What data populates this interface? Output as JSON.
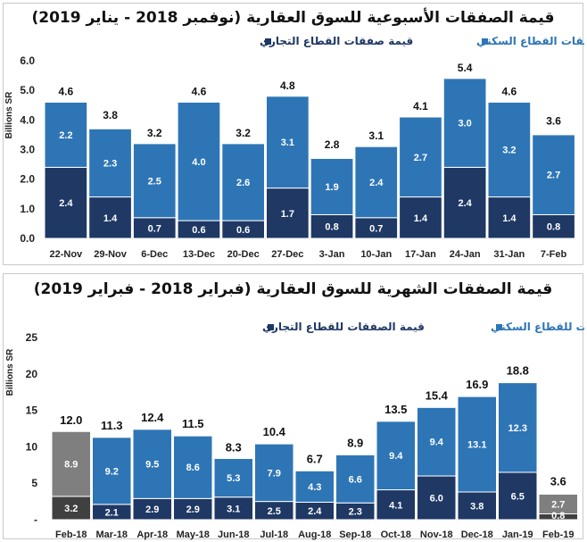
{
  "chart_data": [
    {
      "type": "bar",
      "stacked": true,
      "title": "قيمة الصفقات الأسبوعية للسوق العقارية (نوفمبر 2018 - يناير 2019)",
      "ylabel": "Billions SR",
      "ylim": [
        0,
        6
      ],
      "yticks": [
        "0.0",
        "1.0",
        "2.0",
        "3.0",
        "4.0",
        "5.0",
        "6.0"
      ],
      "categories": [
        "22-Nov",
        "29-Nov",
        "6-Dec",
        "13-Dec",
        "20-Dec",
        "27-Dec",
        "3-Jan",
        "10-Jan",
        "17-Jan",
        "24-Jan",
        "31-Jan",
        "7-Feb"
      ],
      "series": [
        {
          "name": "قيمة صفقات القطاع التجاري",
          "color": "#1f3864",
          "values": [
            2.4,
            1.4,
            0.7,
            0.6,
            0.6,
            1.7,
            0.8,
            0.7,
            1.4,
            2.4,
            1.4,
            0.8
          ]
        },
        {
          "name": "قيمة صفقات القطاع السكني",
          "color": "#2e75b6",
          "values": [
            2.2,
            2.3,
            2.5,
            4.0,
            2.6,
            3.1,
            1.9,
            2.4,
            2.7,
            3.0,
            3.2,
            2.7
          ]
        }
      ],
      "totals": [
        4.6,
        3.8,
        3.2,
        4.6,
        3.2,
        4.8,
        2.8,
        3.1,
        4.1,
        5.4,
        4.6,
        3.6
      ],
      "legend": "top"
    },
    {
      "type": "bar",
      "stacked": true,
      "title": "قيمة الصفقات الشهرية للسوق العقارية (فبراير 2018 - فبراير 2019)",
      "ylabel": "Billions SR",
      "ylim": [
        0,
        25
      ],
      "yticks": [
        "-",
        "5",
        "10",
        "15",
        "20",
        "25"
      ],
      "categories": [
        "Feb-18",
        "Mar-18",
        "Apr-18",
        "May-18",
        "Jun-18",
        "Jul-18",
        "Aug-18",
        "Sep-18",
        "Oct-18",
        "Nov-18",
        "Dec-18",
        "Jan-19",
        "Feb-19"
      ],
      "series": [
        {
          "name": "قيمة الصفقات للقطاع التجاري",
          "color": "#1f3864",
          "values": [
            3.2,
            2.1,
            2.9,
            2.9,
            3.1,
            2.5,
            2.4,
            2.3,
            4.1,
            6.0,
            3.8,
            6.5,
            0.8
          ]
        },
        {
          "name": "قيمة الصفقات للقطاع السكني",
          "color": "#2e75b6",
          "values": [
            8.9,
            9.2,
            9.5,
            8.6,
            5.3,
            7.9,
            4.3,
            6.6,
            9.4,
            9.4,
            13.1,
            12.3,
            2.7
          ]
        }
      ],
      "totals": [
        12.0,
        11.3,
        12.4,
        11.5,
        8.3,
        10.4,
        6.7,
        8.9,
        13.5,
        15.4,
        16.9,
        18.8,
        3.6
      ],
      "partial_color": "#7f7f7f",
      "legend": "top"
    }
  ]
}
